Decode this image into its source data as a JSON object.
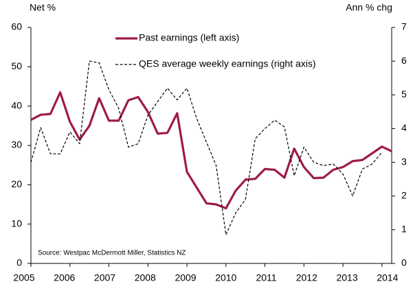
{
  "chart_data": {
    "type": "line",
    "y_label": "Net %",
    "y2_label": "Ann % chg",
    "source": "Source: Westpac McDermott Miller, Statistics NZ",
    "categories": [
      "2005",
      null,
      null,
      null,
      "2006",
      null,
      null,
      null,
      "2007",
      null,
      null,
      null,
      "2008",
      null,
      null,
      null,
      "2009",
      null,
      null,
      null,
      "2010",
      null,
      null,
      null,
      "2011",
      null,
      null,
      null,
      "2012",
      null,
      null,
      null,
      "2013",
      null,
      null,
      null,
      "2014",
      null
    ],
    "series": [
      {
        "name": "Past earnings (left axis)",
        "color": "#9e1b44",
        "axis": "y",
        "values": [
          36.5,
          37.8,
          38,
          43.5,
          36,
          31.5,
          35,
          42,
          36.3,
          36.3,
          41.5,
          42.3,
          38.5,
          33,
          33.2,
          38.2,
          23.3,
          19.3,
          15.3,
          15,
          14,
          18.5,
          21.3,
          21.5,
          24,
          23.8,
          21.8,
          29.2,
          24.5,
          21.7,
          21.8,
          23.8,
          24.5,
          26,
          26.3,
          28,
          29.7,
          28.5
        ]
      },
      {
        "name": "QES average weekly earnings (right axis)",
        "color": "#000000",
        "axis": "y2",
        "dashed": true,
        "values": [
          3.0,
          4.03,
          3.25,
          3.25,
          3.9,
          3.55,
          6.0,
          5.95,
          5.15,
          4.6,
          3.45,
          3.55,
          4.4,
          4.8,
          5.2,
          4.85,
          5.2,
          4.3,
          3.6,
          2.9,
          0.85,
          1.5,
          1.9,
          3.7,
          4.0,
          4.25,
          4.05,
          2.6,
          3.45,
          3.0,
          2.9,
          2.95,
          2.65,
          2.0,
          2.8,
          2.95,
          3.3,
          null
        ]
      }
    ],
    "ylim": [
      0,
      60
    ],
    "yticks": [
      0,
      10,
      20,
      30,
      40,
      50,
      60
    ],
    "y2lim": [
      0,
      7
    ],
    "y2ticks": [
      0,
      1,
      2,
      3,
      4,
      5,
      6,
      7
    ],
    "grid": false
  }
}
